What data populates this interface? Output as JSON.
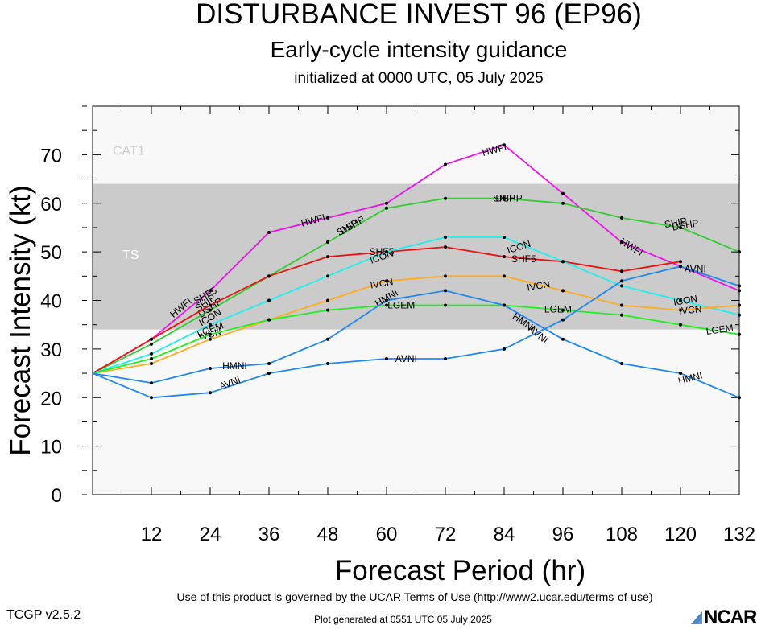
{
  "header": {
    "title": "DISTURBANCE INVEST 96 (EP96)",
    "subtitle": "Early-cycle intensity guidance",
    "initialized": "initialized at 0000 UTC, 05 July 2025"
  },
  "footer": {
    "terms": "Use of this product is governed by the UCAR Terms of Use (http://www2.ucar.edu/terms-of-use)",
    "version": "TCGP v2.5.2",
    "generated": "Plot generated at 0551 UTC   05 July 2025",
    "logo": "NCAR"
  },
  "chart_data": {
    "type": "line",
    "xlabel": "Forecast Period (hr)",
    "ylabel": "Forecast Intensity (kt)",
    "xlim": [
      0,
      132
    ],
    "ylim": [
      0,
      80
    ],
    "x_ticks": [
      12,
      24,
      36,
      48,
      60,
      72,
      84,
      96,
      108,
      120,
      132
    ],
    "y_ticks": [
      0,
      10,
      20,
      30,
      40,
      50,
      60,
      70
    ],
    "bands": [
      {
        "label": "CAT1",
        "from": 64,
        "to": 80,
        "color": "#f8f8f8"
      },
      {
        "label": "TS",
        "from": 34,
        "to": 64,
        "color": "#cbcbcb"
      },
      {
        "label": "",
        "from": 0,
        "to": 34,
        "color": "#f8f8f8"
      }
    ],
    "series": [
      {
        "name": "HWFI",
        "color": "#ee11ee",
        "x": [
          0,
          12,
          24,
          36,
          48,
          60,
          72,
          84,
          96,
          108,
          120,
          132
        ],
        "y": [
          25,
          32,
          42,
          54,
          57,
          60,
          68,
          72,
          62,
          52,
          47,
          42
        ],
        "labels": [
          {
            "x": 18,
            "y": 38.5,
            "rot": -40
          },
          {
            "x": 45,
            "y": 56.5,
            "rot": -15
          },
          {
            "x": 82,
            "y": 71,
            "rot": -15
          },
          {
            "x": 110,
            "y": 51,
            "rot": 32
          }
        ]
      },
      {
        "name": "DSHP",
        "color": "#33cc33",
        "x": [
          0,
          12,
          24,
          36,
          48,
          60,
          72,
          84,
          96,
          108,
          120,
          132
        ],
        "y": [
          25,
          31,
          38,
          45,
          52,
          59,
          61,
          61,
          60,
          57,
          55,
          50
        ],
        "labels": [
          {
            "x": 24,
            "y": 38.5,
            "rot": -35
          },
          {
            "x": 53,
            "y": 55.5,
            "rot": -30
          },
          {
            "x": 85,
            "y": 61,
            "rot": 0
          },
          {
            "x": 121,
            "y": 55.5,
            "rot": -10
          }
        ]
      },
      {
        "name": "SHIP",
        "color": "#33cc33",
        "x": [],
        "y": [],
        "labels": [
          {
            "x": 23,
            "y": 39.5,
            "rot": -35
          },
          {
            "x": 52,
            "y": 55,
            "rot": -30
          },
          {
            "x": 84,
            "y": 61,
            "rot": 0
          },
          {
            "x": 119,
            "y": 56,
            "rot": -10
          }
        ]
      },
      {
        "name": "SHF5",
        "color": "#ee1111",
        "x": [
          0,
          12,
          24,
          36,
          48,
          60,
          72,
          84,
          96,
          108,
          120
        ],
        "y": [
          25,
          32,
          39,
          45,
          49,
          50,
          51,
          49,
          48,
          46,
          48
        ],
        "labels": [
          {
            "x": 23,
            "y": 41,
            "rot": -30
          },
          {
            "x": 59,
            "y": 50,
            "rot": 0
          },
          {
            "x": 88,
            "y": 48.5,
            "rot": 0
          }
        ]
      },
      {
        "name": "ICON",
        "color": "#22eeee",
        "x": [
          0,
          12,
          24,
          36,
          48,
          60,
          72,
          84,
          96,
          108,
          120,
          132
        ],
        "y": [
          25,
          29,
          35,
          40,
          45,
          50,
          53,
          53,
          48,
          43,
          40,
          37
        ],
        "labels": [
          {
            "x": 24,
            "y": 36.5,
            "rot": -30
          },
          {
            "x": 59,
            "y": 49,
            "rot": -20
          },
          {
            "x": 87,
            "y": 51,
            "rot": -18
          },
          {
            "x": 121,
            "y": 40,
            "rot": -10
          }
        ]
      },
      {
        "name": "IVCN",
        "color": "#ffaa22",
        "x": [
          0,
          12,
          24,
          36,
          48,
          60,
          72,
          84,
          96,
          108,
          120,
          132
        ],
        "y": [
          25,
          27,
          32,
          36,
          40,
          44,
          45,
          45,
          42,
          39,
          38,
          39
        ],
        "labels": [
          {
            "x": 24,
            "y": 33,
            "rot": -15
          },
          {
            "x": 59,
            "y": 43.5,
            "rot": -10
          },
          {
            "x": 91,
            "y": 43,
            "rot": -10
          },
          {
            "x": 122,
            "y": 38,
            "rot": -5
          }
        ]
      },
      {
        "name": "LGEM",
        "color": "#22ee22",
        "x": [
          0,
          12,
          24,
          36,
          48,
          60,
          72,
          84,
          96,
          108,
          120,
          132
        ],
        "y": [
          25,
          28,
          33,
          36,
          38,
          39,
          39,
          39,
          38,
          37,
          35,
          33
        ],
        "labels": [
          {
            "x": 24,
            "y": 34,
            "rot": -20
          },
          {
            "x": 63,
            "y": 39,
            "rot": 0
          },
          {
            "x": 95,
            "y": 38.2,
            "rot": 0
          },
          {
            "x": 128,
            "y": 34,
            "rot": -8
          }
        ]
      },
      {
        "name": "HMNI",
        "color": "#2288ee",
        "x": [
          0,
          12,
          24,
          36,
          48,
          60,
          72,
          84,
          96,
          108,
          120,
          132
        ],
        "y": [
          25,
          23,
          26,
          27,
          32,
          40,
          42,
          39,
          32,
          27,
          25,
          20
        ],
        "labels": [
          {
            "x": 29,
            "y": 26.5,
            "rot": 0
          },
          {
            "x": 60,
            "y": 40.5,
            "rot": -30
          },
          {
            "x": 88,
            "y": 35.5,
            "rot": 35
          },
          {
            "x": 122,
            "y": 24,
            "rot": -15
          }
        ]
      },
      {
        "name": "AVNI",
        "color": "#2288ee",
        "x": [
          0,
          12,
          24,
          36,
          48,
          60,
          72,
          84,
          96,
          108,
          120,
          132
        ],
        "y": [
          25,
          20,
          21,
          25,
          27,
          28,
          28,
          30,
          36,
          44,
          47,
          43
        ],
        "labels": [
          {
            "x": 28,
            "y": 23,
            "rot": -20
          },
          {
            "x": 64,
            "y": 28,
            "rot": 0
          },
          {
            "x": 91,
            "y": 33,
            "rot": 40
          },
          {
            "x": 123,
            "y": 46.5,
            "rot": 0
          }
        ]
      }
    ]
  }
}
